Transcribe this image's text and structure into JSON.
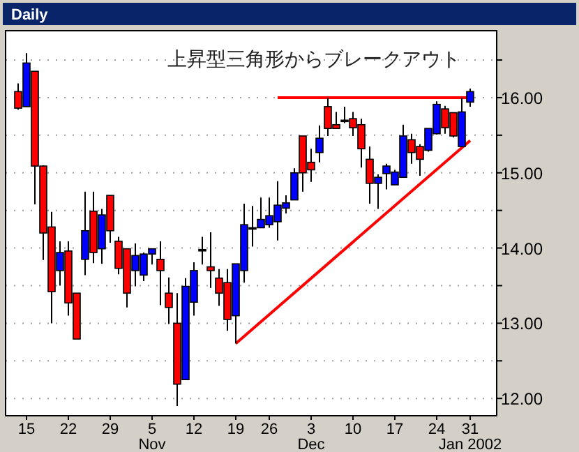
{
  "chart_data": {
    "type": "candlestick",
    "title": "Daily",
    "categories": [
      null,
      "15",
      null,
      null,
      null,
      null,
      "22",
      null,
      null,
      null,
      null,
      "29",
      null,
      null,
      null,
      null,
      "5",
      null,
      null,
      null,
      null,
      "12",
      null,
      null,
      null,
      null,
      "19",
      null,
      null,
      null,
      "26",
      null,
      null,
      null,
      null,
      "3",
      null,
      null,
      null,
      null,
      "10",
      null,
      null,
      null,
      null,
      "17",
      null,
      null,
      null,
      null,
      "24",
      null,
      null,
      null,
      "31"
    ],
    "ohlc": [
      [
        16.08,
        16.19,
        15.84,
        15.86
      ],
      [
        15.88,
        16.59,
        15.88,
        16.46
      ],
      [
        16.35,
        16.35,
        14.58,
        15.09
      ],
      [
        15.09,
        15.1,
        13.84,
        14.2
      ],
      [
        14.28,
        14.48,
        13.0,
        13.42
      ],
      [
        13.7,
        14.09,
        13.5,
        13.94
      ],
      [
        13.96,
        14.09,
        13.1,
        13.27
      ],
      [
        13.4,
        13.4,
        12.79,
        12.79
      ],
      [
        13.85,
        14.75,
        13.64,
        14.23
      ],
      [
        14.49,
        14.75,
        13.8,
        13.94
      ],
      [
        13.99,
        14.52,
        13.79,
        14.44
      ],
      [
        14.7,
        14.7,
        14.07,
        14.23
      ],
      [
        14.09,
        14.15,
        13.65,
        13.73
      ],
      [
        13.99,
        13.99,
        13.21,
        13.4
      ],
      [
        13.7,
        14.06,
        13.49,
        13.9
      ],
      [
        13.64,
        13.94,
        13.56,
        13.92
      ],
      [
        13.92,
        13.99,
        13.78,
        13.99
      ],
      [
        13.85,
        14.09,
        13.24,
        13.7
      ],
      [
        13.4,
        13.61,
        12.99,
        13.21
      ],
      [
        13.0,
        13.4,
        11.9,
        12.19
      ],
      [
        12.25,
        13.6,
        12.25,
        13.49
      ],
      [
        13.28,
        13.81,
        13.1,
        13.7
      ],
      [
        13.98,
        14.15,
        13.78,
        13.98
      ],
      [
        13.75,
        14.21,
        13.47,
        13.7
      ],
      [
        13.6,
        13.72,
        13.23,
        13.4
      ],
      [
        13.54,
        13.72,
        12.9,
        13.05
      ],
      [
        13.1,
        13.79,
        12.73,
        13.79
      ],
      [
        13.7,
        14.59,
        13.54,
        14.31
      ],
      [
        14.27,
        14.56,
        14.02,
        14.27
      ],
      [
        14.27,
        14.67,
        14.27,
        14.38
      ],
      [
        14.31,
        14.67,
        14.27,
        14.43
      ],
      [
        14.35,
        14.89,
        14.1,
        14.57
      ],
      [
        14.53,
        14.7,
        14.46,
        14.6
      ],
      [
        14.64,
        15.06,
        14.64,
        15.0
      ],
      [
        15.49,
        15.49,
        14.75,
        15.0
      ],
      [
        15.14,
        15.32,
        14.88,
        15.04
      ],
      [
        15.27,
        15.63,
        15.14,
        15.46
      ],
      [
        15.88,
        16.0,
        15.49,
        15.59
      ],
      [
        15.64,
        15.81,
        15.59,
        15.59
      ],
      [
        15.7,
        15.88,
        15.66,
        15.7
      ],
      [
        15.72,
        15.81,
        15.49,
        15.6
      ],
      [
        15.64,
        15.72,
        15.07,
        15.32
      ],
      [
        15.18,
        15.35,
        14.59,
        14.86
      ],
      [
        14.86,
        14.98,
        14.52,
        14.94
      ],
      [
        14.99,
        15.12,
        14.78,
        15.09
      ],
      [
        14.84,
        15.04,
        14.84,
        15.01
      ],
      [
        14.94,
        15.64,
        14.94,
        15.49
      ],
      [
        15.44,
        15.52,
        15.12,
        15.27
      ],
      [
        15.35,
        15.38,
        14.96,
        15.18
      ],
      [
        15.3,
        15.59,
        15.28,
        15.59
      ],
      [
        15.52,
        15.95,
        15.51,
        15.91
      ],
      [
        15.85,
        15.89,
        15.52,
        15.6
      ],
      [
        15.8,
        15.8,
        15.47,
        15.49
      ],
      [
        15.35,
        16.0,
        15.35,
        15.81
      ],
      [
        15.94,
        16.12,
        15.88,
        16.08
      ]
    ],
    "colors": [
      "#ff0000",
      "#0000ff",
      "#ff0000",
      "#ff0000",
      "#ff0000",
      "#0000ff",
      "#ff0000",
      "#ff0000",
      "#0000ff",
      "#ff0000",
      "#0000ff",
      "#ff0000",
      "#ff0000",
      "#ff0000",
      "#0000ff",
      "#0000ff",
      "#0000ff",
      "#ff0000",
      "#ff0000",
      "#ff0000",
      "#0000ff",
      "#0000ff",
      "#000000",
      "#ff0000",
      "#ff0000",
      "#ff0000",
      "#0000ff",
      "#0000ff",
      "#000000",
      "#0000ff",
      "#0000ff",
      "#0000ff",
      "#0000ff",
      "#0000ff",
      "#ff0000",
      "#ff0000",
      "#0000ff",
      "#ff0000",
      "#ff0000",
      "#000000",
      "#ff0000",
      "#ff0000",
      "#ff0000",
      "#0000ff",
      "#0000ff",
      "#0000ff",
      "#0000ff",
      "#ff0000",
      "#ff0000",
      "#0000ff",
      "#0000ff",
      "#ff0000",
      "#ff0000",
      "#0000ff",
      "#0000ff"
    ],
    "series": [
      {
        "type": "line",
        "color": "#ff0000",
        "x": [
          "19",
          "31"
        ],
        "values": [
          12.73,
          15.43
        ]
      },
      {
        "type": "line",
        "color": "#ff0000",
        "values": [
          null,
          null,
          null,
          null,
          null,
          null,
          null,
          null,
          null,
          null,
          null,
          null,
          null,
          null,
          null,
          null,
          null,
          null,
          null,
          null,
          null,
          null,
          null,
          null,
          null,
          null,
          null,
          null,
          null,
          null,
          null,
          16.0,
          null,
          null,
          null,
          null,
          null,
          null,
          null,
          null,
          null,
          null,
          null,
          null,
          null,
          null,
          null,
          null,
          null,
          null,
          null,
          null,
          null,
          null,
          16.0
        ]
      }
    ],
    "ylim": [
      11.77,
      16.89
    ],
    "yticks": [
      {
        "value": 12,
        "label": "12.00"
      },
      {
        "value": 12.5,
        "label": null
      },
      {
        "value": 13,
        "label": "13.00"
      },
      {
        "value": 13.5,
        "label": null
      },
      {
        "value": 14,
        "label": "14.00"
      },
      {
        "value": 14.5,
        "label": null
      },
      {
        "value": 15,
        "label": "15.00"
      },
      {
        "value": 15.5,
        "label": null
      },
      {
        "value": 16,
        "label": "16.00"
      },
      {
        "value": 16.5,
        "label": null
      }
    ],
    "grid": "y",
    "annotations": [
      "上昇型三角形からブレークアウト",
      "Nov",
      "Dec",
      "Jan 2002"
    ]
  }
}
